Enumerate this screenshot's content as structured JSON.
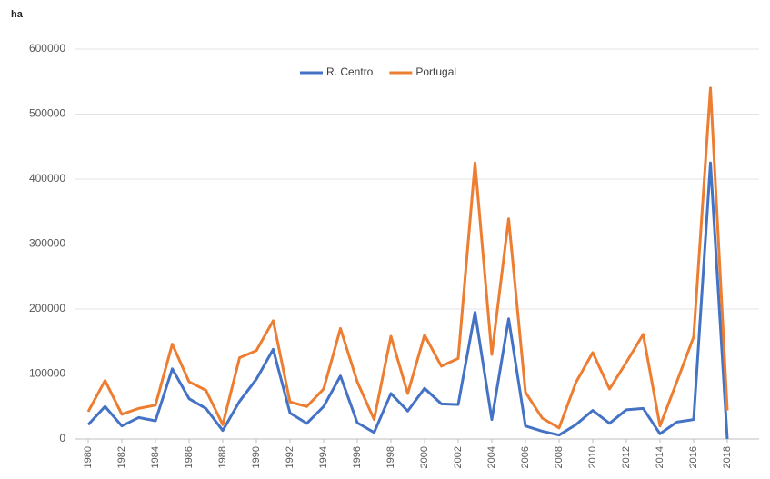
{
  "chart_data": {
    "type": "line",
    "y_label": "ha",
    "x": [
      1980,
      1981,
      1982,
      1983,
      1984,
      1985,
      1986,
      1987,
      1988,
      1989,
      1990,
      1991,
      1992,
      1993,
      1994,
      1995,
      1996,
      1997,
      1998,
      1999,
      2000,
      2001,
      2002,
      2003,
      2004,
      2005,
      2006,
      2007,
      2008,
      2009,
      2010,
      2011,
      2012,
      2013,
      2014,
      2015,
      2016,
      2017,
      2018
    ],
    "series": [
      {
        "name": "R. Centro",
        "color": "#4472c4",
        "values": [
          22000,
          50000,
          20000,
          33000,
          28000,
          108000,
          62000,
          47000,
          13000,
          58000,
          92000,
          138000,
          40000,
          24000,
          50000,
          97000,
          25000,
          10000,
          70000,
          43000,
          78000,
          54000,
          53000,
          195000,
          30000,
          185000,
          20000,
          12000,
          6000,
          22000,
          44000,
          24000,
          45000,
          47000,
          8000,
          26000,
          30000,
          425000,
          0
        ]
      },
      {
        "name": "Portugal",
        "color": "#ed7d31",
        "values": [
          42000,
          90000,
          38000,
          47000,
          52000,
          146000,
          88000,
          75000,
          22000,
          125000,
          136000,
          182000,
          57000,
          50000,
          77000,
          170000,
          88000,
          30000,
          158000,
          70000,
          160000,
          112000,
          124000,
          425000,
          130000,
          339000,
          72000,
          32000,
          17000,
          87000,
          133000,
          77000,
          118000,
          161000,
          20000,
          88000,
          157000,
          540000,
          44000
        ]
      }
    ],
    "xlim": [
      1980,
      2018
    ],
    "xticks": [
      1980,
      1982,
      1984,
      1986,
      1988,
      1990,
      1992,
      1994,
      1996,
      1998,
      2000,
      2002,
      2004,
      2006,
      2008,
      2010,
      2012,
      2014,
      2016,
      2018
    ],
    "ylim": [
      0,
      600000
    ],
    "yticks": [
      0,
      100000,
      200000,
      300000,
      400000,
      500000,
      600000
    ],
    "grid": true,
    "legend": "top"
  }
}
